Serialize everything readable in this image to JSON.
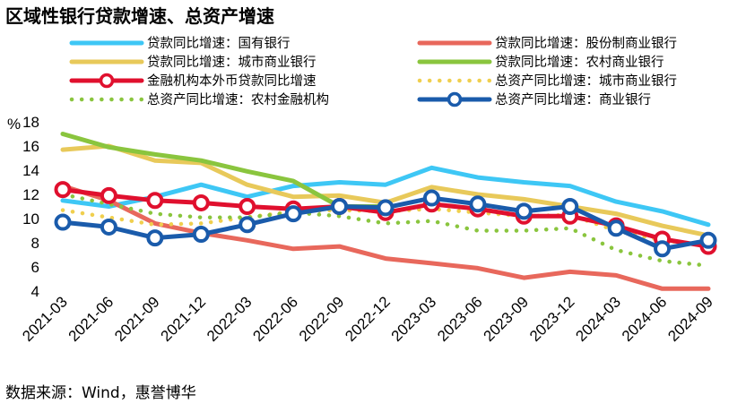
{
  "title": "区域性银行贷款增速、总资产增速",
  "source": "数据来源：Wind，惠誉博华",
  "chart_data": {
    "type": "line",
    "ylabel": "%",
    "ylim": [
      4,
      18
    ],
    "yticks": [
      4,
      6,
      8,
      10,
      12,
      14,
      16,
      18
    ],
    "categories": [
      "2021-03",
      "2021-06",
      "2021-09",
      "2021-12",
      "2022-03",
      "2022-06",
      "2022-09",
      "2022-12",
      "2023-03",
      "2023-06",
      "2023-09",
      "2023-12",
      "2024-03",
      "2024-06",
      "2024-09"
    ],
    "legend_position": "top",
    "series": [
      {
        "name": "贷款同比增速：国有银行",
        "color": "#3ec7f5",
        "style": "solid",
        "values": [
          11.5,
          11.0,
          11.8,
          12.8,
          11.8,
          12.7,
          13.0,
          12.8,
          14.2,
          13.4,
          13.0,
          12.7,
          11.4,
          10.6,
          9.5
        ]
      },
      {
        "name": "贷款同比增速：股份制商业银行",
        "color": "#e8685c",
        "style": "solid",
        "values": [
          12.7,
          11.5,
          9.6,
          8.8,
          8.2,
          7.5,
          7.7,
          6.7,
          6.3,
          5.9,
          5.1,
          5.6,
          5.3,
          4.2,
          4.2
        ]
      },
      {
        "name": "贷款同比增速：城市商业银行",
        "color": "#e8c95a",
        "style": "solid",
        "values": [
          15.7,
          16.0,
          14.8,
          14.6,
          12.8,
          11.8,
          11.9,
          11.3,
          12.6,
          12.0,
          11.6,
          11.0,
          10.4,
          9.4,
          8.6
        ]
      },
      {
        "name": "贷款同比增速：农村商业银行",
        "color": "#8ac53e",
        "style": "solid",
        "values": [
          17.0,
          15.9,
          15.3,
          14.8,
          13.9,
          13.1,
          11.0,
          11.0,
          null,
          null,
          null,
          null,
          null,
          null,
          null
        ]
      },
      {
        "name": "金融机构本外币贷款同比增速",
        "color": "#e0102e",
        "style": "solid-marker",
        "values": [
          12.4,
          11.9,
          11.5,
          11.3,
          11.0,
          10.8,
          11.0,
          10.5,
          11.2,
          10.8,
          10.2,
          10.2,
          9.4,
          8.3,
          7.7
        ]
      },
      {
        "name": "总资产同比增速：城市商业银行",
        "color": "#f0cf4e",
        "style": "dotted",
        "values": [
          10.7,
          10.1,
          9.5,
          9.6,
          10.1,
          10.6,
          10.7,
          10.6,
          10.8,
          10.5,
          10.2,
          10.3,
          9.0,
          8.2,
          7.8
        ]
      },
      {
        "name": "总资产同比增速：农村金融机构",
        "color": "#8ac53e",
        "style": "dotted",
        "values": [
          12.0,
          11.2,
          10.4,
          10.1,
          10.1,
          10.5,
          10.2,
          9.6,
          9.8,
          9.0,
          9.0,
          9.2,
          7.4,
          6.5,
          6.1
        ]
      },
      {
        "name": "总资产同比增速：商业银行",
        "color": "#1a5bab",
        "style": "solid-marker",
        "values": [
          9.7,
          9.3,
          8.4,
          8.7,
          9.5,
          10.4,
          11.0,
          10.9,
          11.7,
          11.2,
          10.6,
          11.0,
          9.2,
          7.5,
          8.2
        ]
      }
    ]
  }
}
